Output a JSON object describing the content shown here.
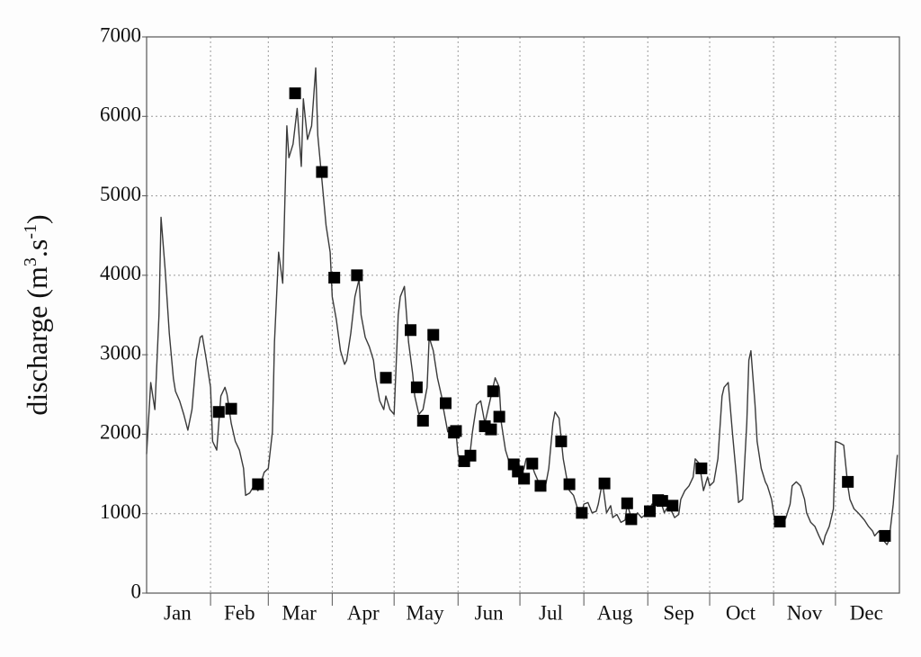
{
  "chart_data": {
    "type": "line",
    "y_label": {
      "base": "discharge (m",
      "sup1": "3",
      "mid": ".s",
      "sup2": "-1",
      "end": ")"
    },
    "xlim": [
      1,
      366
    ],
    "xticks": [
      {
        "value": 16,
        "label": "Jan"
      },
      {
        "value": 46,
        "label": "Feb"
      },
      {
        "value": 75,
        "label": "Mar"
      },
      {
        "value": 106,
        "label": "Apr"
      },
      {
        "value": 136,
        "label": "May"
      },
      {
        "value": 167,
        "label": "Jun"
      },
      {
        "value": 197,
        "label": "Jul"
      },
      {
        "value": 228,
        "label": "Aug"
      },
      {
        "value": 259,
        "label": "Sep"
      },
      {
        "value": 289,
        "label": "Oct"
      },
      {
        "value": 320,
        "label": "Nov"
      },
      {
        "value": 350,
        "label": "Dec"
      }
    ],
    "xgrid": [
      32,
      60,
      91,
      121,
      152,
      182,
      213,
      244,
      274,
      305,
      335
    ],
    "ylim": [
      0,
      7000
    ],
    "yticks": [
      0,
      1000,
      2000,
      3000,
      4000,
      5000,
      6000,
      7000
    ],
    "grid": true,
    "series": [
      {
        "type": "line",
        "color": "#3a3a3a",
        "x": [
          1,
          3,
          5,
          7,
          8,
          10,
          12,
          14,
          15,
          17,
          19,
          21,
          23,
          25,
          27,
          28,
          30,
          32,
          33,
          35,
          37,
          39,
          40,
          42,
          44,
          46,
          48,
          49,
          51,
          53,
          55,
          56,
          58,
          60,
          62,
          63,
          65,
          67,
          69,
          70,
          72,
          74,
          76,
          77,
          79,
          81,
          83,
          84,
          86,
          88,
          90,
          91,
          93,
          95,
          97,
          98,
          100,
          102,
          104,
          105,
          107,
          109,
          111,
          112,
          114,
          116,
          117,
          119,
          121,
          123,
          124,
          126,
          128,
          130,
          131,
          133,
          135,
          137,
          138,
          140,
          142,
          144,
          145,
          147,
          149,
          151,
          152,
          154,
          156,
          158,
          159,
          161,
          163,
          165,
          166,
          168,
          170,
          172,
          173,
          175,
          177,
          178,
          180,
          182,
          184,
          185,
          187,
          189,
          191,
          192,
          194,
          196,
          198,
          199,
          201,
          203,
          205,
          206,
          208,
          210,
          212,
          213,
          215,
          217,
          219,
          220,
          222,
          224,
          226,
          227,
          229,
          231,
          233,
          234,
          236,
          238,
          239,
          241,
          243,
          245,
          246,
          248,
          250,
          252,
          253,
          255,
          257,
          259,
          260,
          262,
          264,
          266,
          267,
          269,
          271,
          273,
          274,
          276,
          278,
          280,
          281,
          283,
          285,
          287,
          288,
          290,
          292,
          293,
          294,
          296,
          297,
          299,
          301,
          302,
          304,
          306,
          307,
          309,
          311,
          313,
          314,
          316,
          318,
          320,
          321,
          323,
          325,
          327,
          329,
          330,
          332,
          334,
          335,
          337,
          339,
          341,
          342,
          344,
          346,
          348,
          349,
          351,
          353,
          354,
          356,
          358,
          360,
          361,
          363,
          365
        ],
        "values": [
          1750,
          2650,
          2310,
          3500,
          4730,
          4070,
          3270,
          2700,
          2540,
          2420,
          2250,
          2050,
          2310,
          2930,
          3220,
          3240,
          2930,
          2590,
          1910,
          1800,
          2480,
          2590,
          2500,
          2140,
          1910,
          1800,
          1570,
          1230,
          1260,
          1350,
          1290,
          1350,
          1520,
          1570,
          2030,
          3160,
          4290,
          3900,
          5880,
          5480,
          5650,
          6100,
          5370,
          6220,
          5710,
          5880,
          6610,
          5760,
          5200,
          4630,
          4290,
          3730,
          3440,
          3050,
          2880,
          2930,
          3270,
          3730,
          3950,
          3500,
          3220,
          3100,
          2930,
          2710,
          2420,
          2310,
          2480,
          2310,
          2250,
          3500,
          3730,
          3860,
          3160,
          2760,
          2480,
          2250,
          2310,
          2590,
          3220,
          3050,
          2710,
          2480,
          2310,
          2030,
          2050,
          2030,
          1740,
          1690,
          1660,
          1800,
          2030,
          2370,
          2420,
          2140,
          2250,
          2480,
          2710,
          2590,
          2140,
          1800,
          1630,
          1570,
          1520,
          1460,
          1570,
          1690,
          1690,
          1520,
          1400,
          1290,
          1290,
          1570,
          2140,
          2280,
          2200,
          1690,
          1400,
          1290,
          1230,
          1060,
          1010,
          1120,
          1140,
          1010,
          1030,
          1120,
          1400,
          1010,
          1100,
          950,
          990,
          890,
          920,
          1120,
          950,
          950,
          1010,
          950,
          990,
          1060,
          1120,
          1120,
          1180,
          1010,
          1060,
          1060,
          950,
          990,
          1180,
          1290,
          1350,
          1460,
          1690,
          1630,
          1290,
          1460,
          1350,
          1400,
          1690,
          2480,
          2590,
          2650,
          2030,
          1460,
          1140,
          1180,
          2140,
          2930,
          3050,
          2370,
          1910,
          1570,
          1400,
          1350,
          1180,
          840,
          950,
          840,
          950,
          1120,
          1350,
          1400,
          1350,
          1180,
          1010,
          890,
          840,
          720,
          610,
          720,
          840,
          1060,
          1910,
          1890,
          1860,
          1350,
          1180,
          1060,
          1010,
          950,
          920,
          840,
          780,
          720,
          780,
          670,
          610,
          670,
          1120,
          1740
        ]
      },
      {
        "type": "scatter",
        "color": "#000000",
        "x": [
          36,
          42,
          55,
          73,
          86,
          92,
          103,
          117,
          129,
          132,
          135,
          140,
          146,
          150,
          151,
          155,
          158,
          165,
          168,
          169,
          172,
          179,
          181,
          184,
          188,
          192,
          202,
          206,
          212,
          223,
          234,
          236,
          245,
          249,
          251,
          256,
          270,
          308,
          341,
          359
        ],
        "values": [
          2280,
          2320,
          1370,
          6290,
          5300,
          3970,
          4000,
          2710,
          3310,
          2590,
          2170,
          3250,
          2390,
          2020,
          2040,
          1660,
          1730,
          2100,
          2060,
          2540,
          2220,
          1620,
          1530,
          1440,
          1630,
          1350,
          1910,
          1370,
          1010,
          1380,
          1130,
          930,
          1030,
          1170,
          1160,
          1100,
          1570,
          900,
          1400,
          720
        ]
      }
    ]
  }
}
